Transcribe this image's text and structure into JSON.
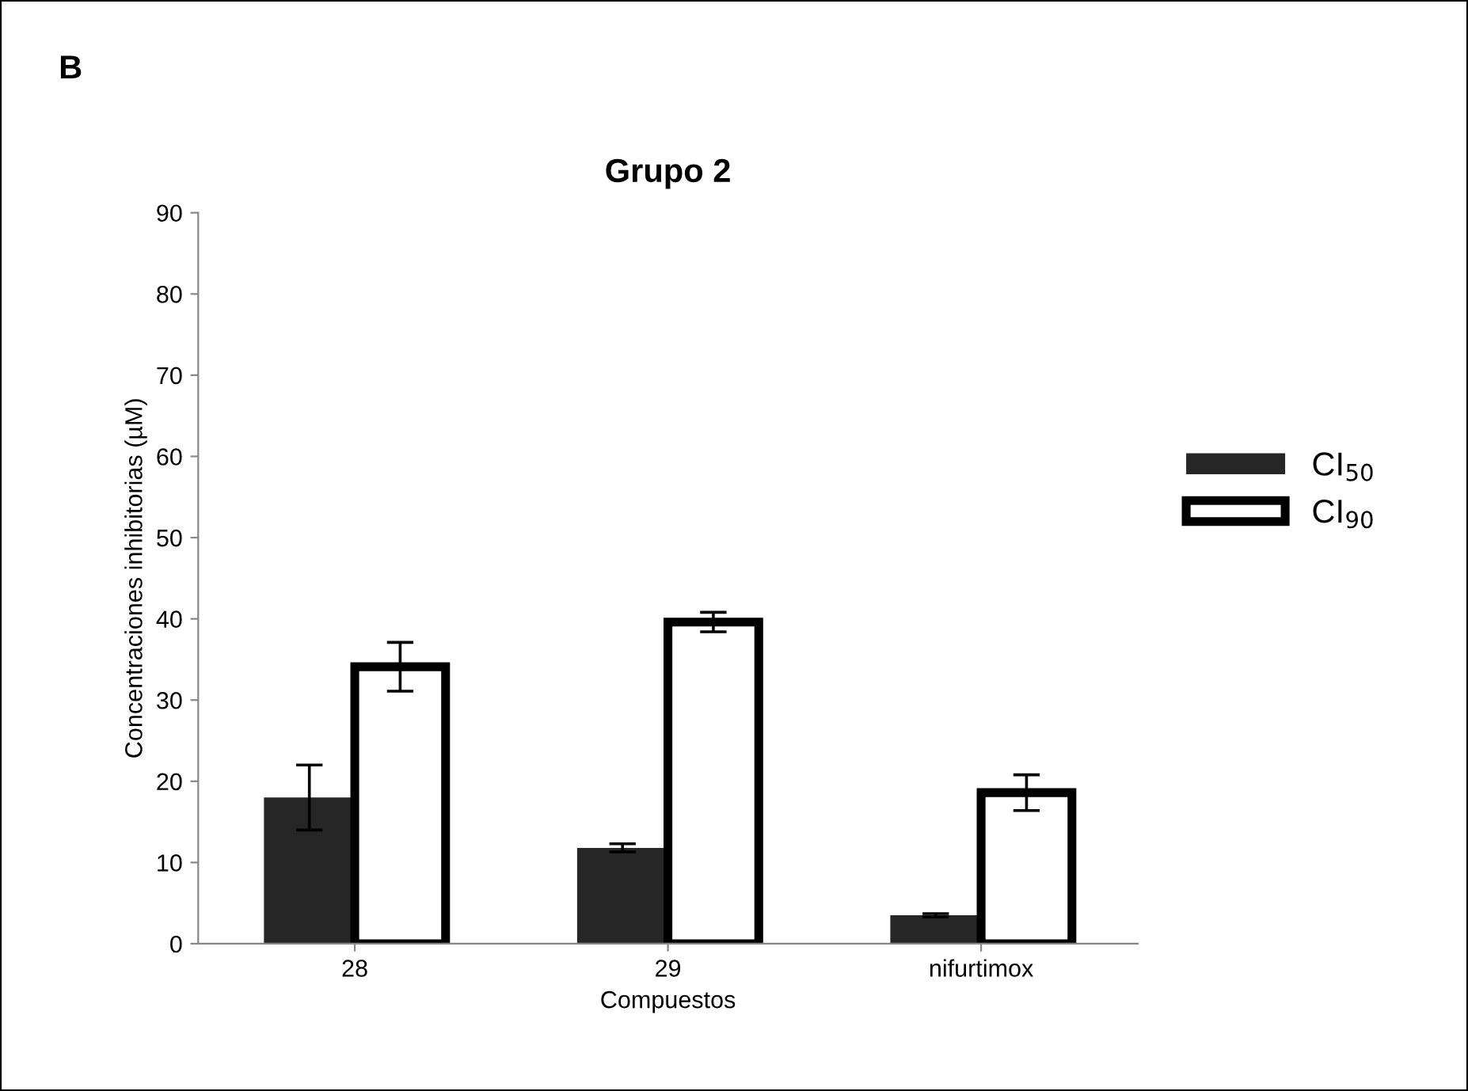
{
  "chart_data": {
    "type": "bar",
    "title": "Grupo 2",
    "xlabel": "Compuestos",
    "ylabel": "Concentraciones inhibitorias (µM)",
    "annotations": [
      "B"
    ],
    "categories": [
      "28",
      "29",
      "nifurtimox"
    ],
    "series": [
      {
        "name": "CI$_{50}$",
        "color": "#262626",
        "values": [
          18,
          11.8,
          3.5
        ],
        "errors": [
          4,
          0.5,
          0.2
        ]
      },
      {
        "name": "CI$_{90}$",
        "color": "#ffffff",
        "values": [
          34.1,
          39.6,
          18.6
        ],
        "errors": [
          3,
          1.2,
          2.2
        ]
      }
    ],
    "ylim": [
      0,
      90
    ],
    "yticks": [
      0,
      10,
      20,
      30,
      40,
      50,
      60,
      70,
      80,
      90
    ],
    "grid": false,
    "legend": "right"
  }
}
